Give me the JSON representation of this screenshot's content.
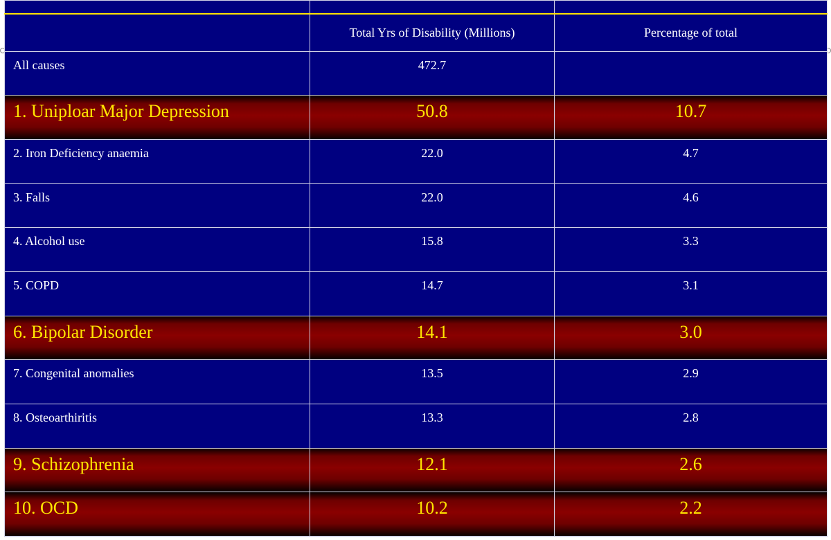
{
  "table": {
    "headers": [
      "",
      "Total Yrs of Disability  (Millions)",
      "Percentage  of total"
    ],
    "rows": [
      {
        "cause": "All causes",
        "years": "472.7",
        "percent": "",
        "highlight": false
      },
      {
        "cause": "1. Uniploar  Major Depression",
        "years": "50.8",
        "percent": "10.7",
        "highlight": true
      },
      {
        "cause": "2. Iron Deficiency  anaemia",
        "years": "22.0",
        "percent": "4.7",
        "highlight": false
      },
      {
        "cause": "3. Falls",
        "years": "22.0",
        "percent": "4.6",
        "highlight": false
      },
      {
        "cause": "4. Alcohol  use",
        "years": "15.8",
        "percent": "3.3",
        "highlight": false
      },
      {
        "cause": "5. COPD",
        "years": "14.7",
        "percent": "3.1",
        "highlight": false
      },
      {
        "cause": "6. Bipolar Disorder",
        "years": "14.1",
        "percent": "3.0",
        "highlight": true
      },
      {
        "cause": "7.  Congenital  anomalies",
        "years": "13.5",
        "percent": "2.9",
        "highlight": false
      },
      {
        "cause": "8. Osteoarthiritis",
        "years": "13.3",
        "percent": "2.8",
        "highlight": false
      },
      {
        "cause": "9. Schizophrenia",
        "years": "12.1",
        "percent": "2.6",
        "highlight": true
      },
      {
        "cause": "10.  OCD",
        "years": "10.2",
        "percent": "2.2",
        "highlight": true
      }
    ]
  },
  "colors": {
    "background": "#000080",
    "highlight_row": "#8a0000",
    "highlight_text": "#ffe600",
    "accent_line": "#ffe400",
    "text": "#ffffff"
  },
  "chart_data": {
    "type": "table",
    "columns": [
      "",
      "Total Yrs of Disability  (Millions)",
      "Percentage  of total"
    ],
    "rows": [
      [
        "All causes",
        472.7,
        null
      ],
      [
        "1. Uniploar  Major Depression",
        50.8,
        10.7
      ],
      [
        "2. Iron Deficiency  anaemia",
        22.0,
        4.7
      ],
      [
        "3. Falls",
        22.0,
        4.6
      ],
      [
        "4. Alcohol  use",
        15.8,
        3.3
      ],
      [
        "5. COPD",
        14.7,
        3.1
      ],
      [
        "6. Bipolar Disorder",
        14.1,
        3.0
      ],
      [
        "7.  Congenital  anomalies",
        13.5,
        2.9
      ],
      [
        "8. Osteoarthiritis",
        13.3,
        2.8
      ],
      [
        "9. Schizophrenia",
        12.1,
        2.6
      ],
      [
        "10.  OCD",
        10.2,
        2.2
      ]
    ]
  }
}
